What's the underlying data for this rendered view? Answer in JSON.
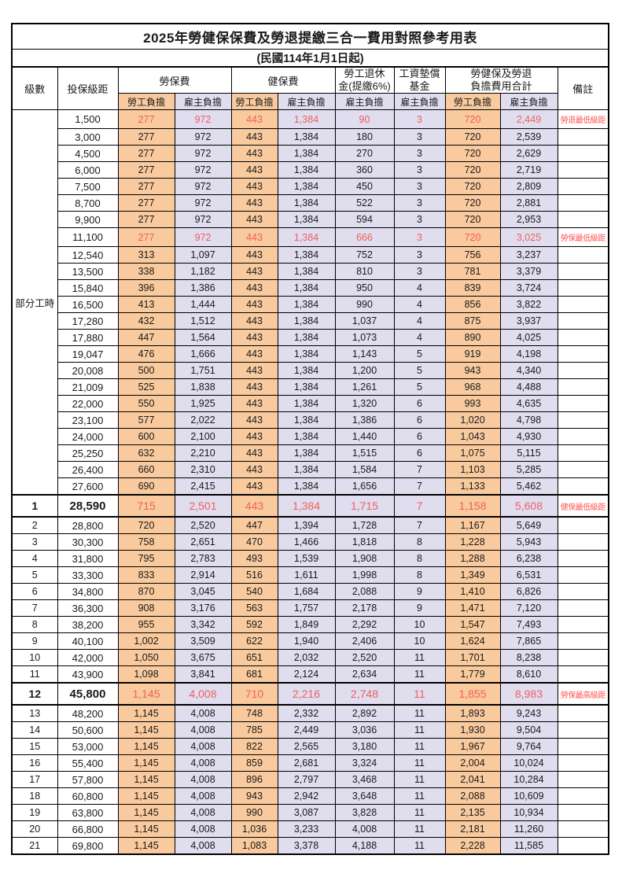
{
  "title": "2025年勞健保保費及勞退提繳三合一費用對照參考用表",
  "subtitle": "(民國114年1月1日起)",
  "header": {
    "level": "級數",
    "bracket": "投保級距",
    "labor_ins": "勞保費",
    "health_ins": "健保費",
    "pension_l1": "勞工退休",
    "pension_l2": "金(提繳6%)",
    "fund_l1": "工資墊償",
    "fund_l2": "基金",
    "total_l1": "勞健保及勞退",
    "total_l2": "負擔費用合計",
    "note": "備註",
    "employee": "勞工負擔",
    "employer": "雇主負擔"
  },
  "colors": {
    "employee_bg": "#F8CA9E",
    "employer_bg": "#DFDDEE",
    "highlight_value": "#F15F5F",
    "note_red": "#FF5353",
    "border": "#000000"
  },
  "group_label": "部分工時",
  "rows": [
    {
      "group": "部分工時",
      "group_span": 23,
      "bracket": "1,500",
      "v": [
        "277",
        "972",
        "443",
        "1,384",
        "90",
        "3",
        "720",
        "2,449"
      ],
      "note": "勞退最低級距",
      "style": "red"
    },
    {
      "bracket": "3,000",
      "v": [
        "277",
        "972",
        "443",
        "1,384",
        "180",
        "3",
        "720",
        "2,539"
      ]
    },
    {
      "bracket": "4,500",
      "v": [
        "277",
        "972",
        "443",
        "1,384",
        "270",
        "3",
        "720",
        "2,629"
      ]
    },
    {
      "bracket": "6,000",
      "v": [
        "277",
        "972",
        "443",
        "1,384",
        "360",
        "3",
        "720",
        "2,719"
      ]
    },
    {
      "bracket": "7,500",
      "v": [
        "277",
        "972",
        "443",
        "1,384",
        "450",
        "3",
        "720",
        "2,809"
      ]
    },
    {
      "bracket": "8,700",
      "v": [
        "277",
        "972",
        "443",
        "1,384",
        "522",
        "3",
        "720",
        "2,881"
      ]
    },
    {
      "bracket": "9,900",
      "v": [
        "277",
        "972",
        "443",
        "1,384",
        "594",
        "3",
        "720",
        "2,953"
      ]
    },
    {
      "bracket": "11,100",
      "v": [
        "277",
        "972",
        "443",
        "1,384",
        "666",
        "3",
        "720",
        "3,025"
      ],
      "note": "勞保最低級距",
      "style": "red"
    },
    {
      "bracket": "12,540",
      "v": [
        "313",
        "1,097",
        "443",
        "1,384",
        "752",
        "3",
        "756",
        "3,237"
      ]
    },
    {
      "bracket": "13,500",
      "v": [
        "338",
        "1,182",
        "443",
        "1,384",
        "810",
        "3",
        "781",
        "3,379"
      ]
    },
    {
      "bracket": "15,840",
      "v": [
        "396",
        "1,386",
        "443",
        "1,384",
        "950",
        "4",
        "839",
        "3,724"
      ]
    },
    {
      "bracket": "16,500",
      "v": [
        "413",
        "1,444",
        "443",
        "1,384",
        "990",
        "4",
        "856",
        "3,822"
      ]
    },
    {
      "bracket": "17,280",
      "v": [
        "432",
        "1,512",
        "443",
        "1,384",
        "1,037",
        "4",
        "875",
        "3,937"
      ]
    },
    {
      "bracket": "17,880",
      "v": [
        "447",
        "1,564",
        "443",
        "1,384",
        "1,073",
        "4",
        "890",
        "4,025"
      ]
    },
    {
      "bracket": "19,047",
      "v": [
        "476",
        "1,666",
        "443",
        "1,384",
        "1,143",
        "5",
        "919",
        "4,198"
      ]
    },
    {
      "bracket": "20,008",
      "v": [
        "500",
        "1,751",
        "443",
        "1,384",
        "1,200",
        "5",
        "943",
        "4,340"
      ]
    },
    {
      "bracket": "21,009",
      "v": [
        "525",
        "1,838",
        "443",
        "1,384",
        "1,261",
        "5",
        "968",
        "4,488"
      ]
    },
    {
      "bracket": "22,000",
      "v": [
        "550",
        "1,925",
        "443",
        "1,384",
        "1,320",
        "6",
        "993",
        "4,635"
      ]
    },
    {
      "bracket": "23,100",
      "v": [
        "577",
        "2,022",
        "443",
        "1,384",
        "1,386",
        "6",
        "1,020",
        "4,798"
      ]
    },
    {
      "bracket": "24,000",
      "v": [
        "600",
        "2,100",
        "443",
        "1,384",
        "1,440",
        "6",
        "1,043",
        "4,930"
      ]
    },
    {
      "bracket": "25,250",
      "v": [
        "632",
        "2,210",
        "443",
        "1,384",
        "1,515",
        "6",
        "1,075",
        "5,115"
      ]
    },
    {
      "bracket": "26,400",
      "v": [
        "660",
        "2,310",
        "443",
        "1,384",
        "1,584",
        "7",
        "1,103",
        "5,285"
      ]
    },
    {
      "bracket": "27,600",
      "v": [
        "690",
        "2,415",
        "443",
        "1,384",
        "1,656",
        "7",
        "1,133",
        "5,462"
      ]
    },
    {
      "level": "1",
      "bracket": "28,590",
      "v": [
        "715",
        "2,501",
        "443",
        "1,384",
        "1,715",
        "7",
        "1,158",
        "5,608"
      ],
      "note": "健保最低級距",
      "style": "big"
    },
    {
      "level": "2",
      "bracket": "28,800",
      "v": [
        "720",
        "2,520",
        "447",
        "1,394",
        "1,728",
        "7",
        "1,167",
        "5,649"
      ]
    },
    {
      "level": "3",
      "bracket": "30,300",
      "v": [
        "758",
        "2,651",
        "470",
        "1,466",
        "1,818",
        "8",
        "1,228",
        "5,943"
      ]
    },
    {
      "level": "4",
      "bracket": "31,800",
      "v": [
        "795",
        "2,783",
        "493",
        "1,539",
        "1,908",
        "8",
        "1,288",
        "6,238"
      ]
    },
    {
      "level": "5",
      "bracket": "33,300",
      "v": [
        "833",
        "2,914",
        "516",
        "1,611",
        "1,998",
        "8",
        "1,349",
        "6,531"
      ]
    },
    {
      "level": "6",
      "bracket": "34,800",
      "v": [
        "870",
        "3,045",
        "540",
        "1,684",
        "2,088",
        "9",
        "1,410",
        "6,826"
      ]
    },
    {
      "level": "7",
      "bracket": "36,300",
      "v": [
        "908",
        "3,176",
        "563",
        "1,757",
        "2,178",
        "9",
        "1,471",
        "7,120"
      ]
    },
    {
      "level": "8",
      "bracket": "38,200",
      "v": [
        "955",
        "3,342",
        "592",
        "1,849",
        "2,292",
        "10",
        "1,547",
        "7,493"
      ]
    },
    {
      "level": "9",
      "bracket": "40,100",
      "v": [
        "1,002",
        "3,509",
        "622",
        "1,940",
        "2,406",
        "10",
        "1,624",
        "7,865"
      ]
    },
    {
      "level": "10",
      "bracket": "42,000",
      "v": [
        "1,050",
        "3,675",
        "651",
        "2,032",
        "2,520",
        "11",
        "1,701",
        "8,238"
      ]
    },
    {
      "level": "11",
      "bracket": "43,900",
      "v": [
        "1,098",
        "3,841",
        "681",
        "2,124",
        "2,634",
        "11",
        "1,779",
        "8,610"
      ]
    },
    {
      "level": "12",
      "bracket": "45,800",
      "v": [
        "1,145",
        "4,008",
        "710",
        "2,216",
        "2,748",
        "11",
        "1,855",
        "8,983"
      ],
      "note": "勞保最高級距",
      "style": "big"
    },
    {
      "level": "13",
      "bracket": "48,200",
      "v": [
        "1,145",
        "4,008",
        "748",
        "2,332",
        "2,892",
        "11",
        "1,893",
        "9,243"
      ]
    },
    {
      "level": "14",
      "bracket": "50,600",
      "v": [
        "1,145",
        "4,008",
        "785",
        "2,449",
        "3,036",
        "11",
        "1,930",
        "9,504"
      ]
    },
    {
      "level": "15",
      "bracket": "53,000",
      "v": [
        "1,145",
        "4,008",
        "822",
        "2,565",
        "3,180",
        "11",
        "1,967",
        "9,764"
      ]
    },
    {
      "level": "16",
      "bracket": "55,400",
      "v": [
        "1,145",
        "4,008",
        "859",
        "2,681",
        "3,324",
        "11",
        "2,004",
        "10,024"
      ]
    },
    {
      "level": "17",
      "bracket": "57,800",
      "v": [
        "1,145",
        "4,008",
        "896",
        "2,797",
        "3,468",
        "11",
        "2,041",
        "10,284"
      ]
    },
    {
      "level": "18",
      "bracket": "60,800",
      "v": [
        "1,145",
        "4,008",
        "943",
        "2,942",
        "3,648",
        "11",
        "2,088",
        "10,609"
      ]
    },
    {
      "level": "19",
      "bracket": "63,800",
      "v": [
        "1,145",
        "4,008",
        "990",
        "3,087",
        "3,828",
        "11",
        "2,135",
        "10,934"
      ]
    },
    {
      "level": "20",
      "bracket": "66,800",
      "v": [
        "1,145",
        "4,008",
        "1,036",
        "3,233",
        "4,008",
        "11",
        "2,181",
        "11,260"
      ]
    },
    {
      "level": "21",
      "bracket": "69,800",
      "v": [
        "1,145",
        "4,008",
        "1,083",
        "3,378",
        "4,188",
        "11",
        "2,228",
        "11,585"
      ]
    }
  ]
}
